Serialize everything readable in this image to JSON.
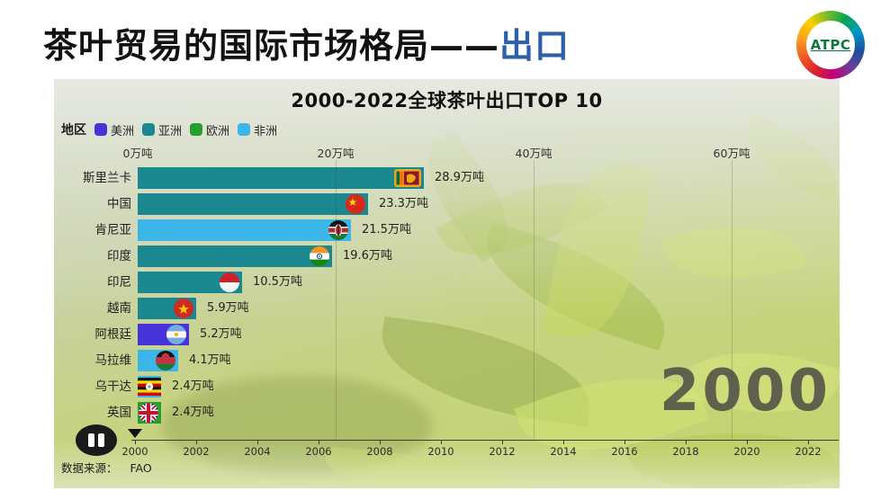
{
  "slide": {
    "title_main": "茶叶贸易的国际市场格局——",
    "title_highlight": "出口",
    "title_highlight_color": "#2e5fa9",
    "logo_text": "ATPC"
  },
  "chart_data": {
    "type": "bar",
    "orientation": "horizontal",
    "title": "2000-2022全球茶叶出口TOP 10",
    "legend_title": "地区",
    "legend_position": "top-left",
    "grid": "vertical-lines",
    "legend": [
      {
        "label": "美洲",
        "color": "#4733d9"
      },
      {
        "label": "亚洲",
        "color": "#1b878f"
      },
      {
        "label": "欧洲",
        "color": "#25a02c"
      },
      {
        "label": "非洲",
        "color": "#3cb5e8"
      }
    ],
    "unit": "万吨",
    "xlim": [
      0,
      70
    ],
    "x_ticks": [
      {
        "label": "0万吨",
        "value": 0
      },
      {
        "label": "20万吨",
        "value": 20
      },
      {
        "label": "40万吨",
        "value": 40
      },
      {
        "label": "60万吨",
        "value": 60
      }
    ],
    "rows": [
      {
        "country": "斯里兰卡",
        "value": 28.9,
        "value_label": "28.9万吨",
        "region": "亚洲",
        "flag": "sri-lanka-flag-icon"
      },
      {
        "country": "中国",
        "value": 23.3,
        "value_label": "23.3万吨",
        "region": "亚洲",
        "flag": "china-flag-icon"
      },
      {
        "country": "肯尼亚",
        "value": 21.5,
        "value_label": "21.5万吨",
        "region": "非洲",
        "flag": "kenya-flag-icon"
      },
      {
        "country": "印度",
        "value": 19.6,
        "value_label": "19.6万吨",
        "region": "亚洲",
        "flag": "india-flag-icon"
      },
      {
        "country": "印尼",
        "value": 10.5,
        "value_label": "10.5万吨",
        "region": "亚洲",
        "flag": "indonesia-flag-icon"
      },
      {
        "country": "越南",
        "value": 5.9,
        "value_label": "5.9万吨",
        "region": "亚洲",
        "flag": "vietnam-flag-icon"
      },
      {
        "country": "阿根廷",
        "value": 5.2,
        "value_label": "5.2万吨",
        "region": "美洲",
        "flag": "argentina-flag-icon"
      },
      {
        "country": "马拉维",
        "value": 4.1,
        "value_label": "4.1万吨",
        "region": "非洲",
        "flag": "malawi-flag-icon"
      },
      {
        "country": "乌干达",
        "value": 2.4,
        "value_label": "2.4万吨",
        "region": "非洲",
        "flag": "uganda-flag-icon"
      },
      {
        "country": "英国",
        "value": 2.4,
        "value_label": "2.4万吨",
        "region": "欧洲",
        "flag": "uk-flag-icon"
      }
    ],
    "current_year": "2000",
    "timeline_years": [
      "2000",
      "2002",
      "2004",
      "2006",
      "2008",
      "2010",
      "2012",
      "2014",
      "2016",
      "2018",
      "2020",
      "2022"
    ],
    "source_label": "数据来源：",
    "source_value": "FAO"
  }
}
